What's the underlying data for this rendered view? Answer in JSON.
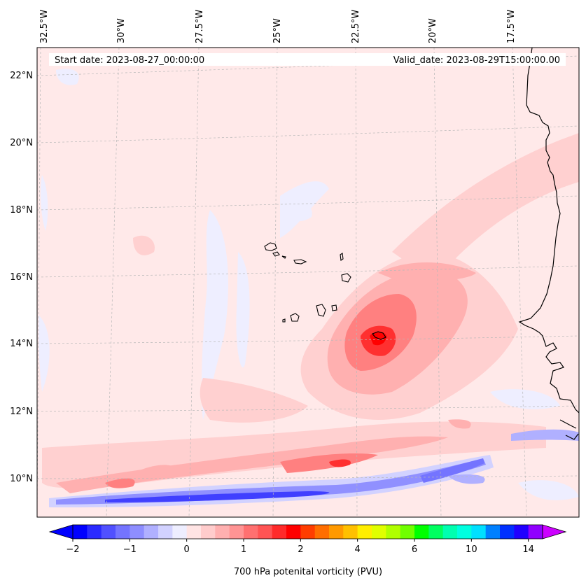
{
  "map": {
    "start_date": "Start date: 2023-08-27_00:00:00",
    "valid_date": "Valid_date: 2023-08-29T15:00:00.00",
    "longitude_labels": [
      "32.5°W",
      "30°W",
      "27.5°W",
      "25°W",
      "22.5°W",
      "20°W",
      "17.5°W"
    ],
    "latitude_labels": [
      "22°N",
      "20°N",
      "18°N",
      "16°N",
      "14°N",
      "12°N",
      "10°N"
    ],
    "features": [
      "Cape Verde islands",
      "West African coastline"
    ]
  },
  "colorbar": {
    "label": "700 hPa potenital vorticity (PVU)",
    "tick_labels": [
      "−2",
      "−1",
      "0",
      "1",
      "2",
      "4",
      "6",
      "10",
      "14"
    ],
    "colors": [
      "#0000ff",
      "#2a2aff",
      "#5050ff",
      "#7474ff",
      "#8e8eff",
      "#b0b0ff",
      "#d2d2ff",
      "#eeeeff",
      "#ffe4e4",
      "#ffcccc",
      "#ffb0b0",
      "#ff9494",
      "#ff7070",
      "#ff5454",
      "#ff2a2a",
      "#ff0000",
      "#ff3d00",
      "#ff6e00",
      "#ff9900",
      "#ffc000",
      "#ffee00",
      "#e0ff00",
      "#b0ff00",
      "#70ff00",
      "#00ff00",
      "#00ff60",
      "#00ffb0",
      "#00ffe0",
      "#00e0ff",
      "#0080ff",
      "#0030ff",
      "#2000ff",
      "#9000ff"
    ],
    "under_color": "#0000ff",
    "over_color": "#cc00ff"
  }
}
